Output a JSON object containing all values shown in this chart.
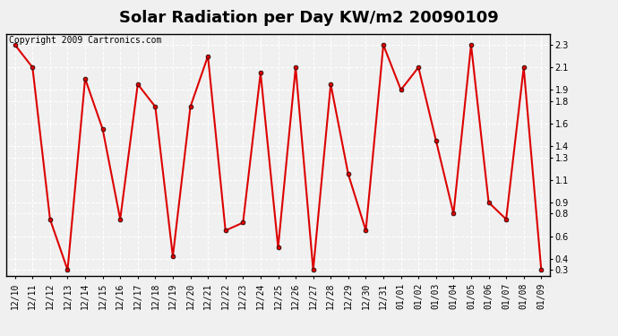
{
  "title": "Solar Radiation per Day KW/m2 20090109",
  "copyright": "Copyright 2009 Cartronics.com",
  "labels": [
    "12/10",
    "12/11",
    "12/12",
    "12/13",
    "12/14",
    "12/15",
    "12/16",
    "12/17",
    "12/18",
    "12/19",
    "12/20",
    "12/21",
    "12/22",
    "12/23",
    "12/24",
    "12/25",
    "12/26",
    "12/27",
    "12/28",
    "12/29",
    "12/30",
    "12/31",
    "01/01",
    "01/02",
    "01/03",
    "01/04",
    "01/05",
    "01/06",
    "01/07",
    "01/08",
    "01/09"
  ],
  "values": [
    2.3,
    2.1,
    0.75,
    0.3,
    2.0,
    1.55,
    0.75,
    1.95,
    1.75,
    0.42,
    1.75,
    2.2,
    0.65,
    0.72,
    2.05,
    0.5,
    2.1,
    0.3,
    1.95,
    1.15,
    0.65,
    2.3,
    1.9,
    2.1,
    1.45,
    0.8,
    2.3,
    0.9,
    0.75,
    2.1,
    0.3
  ],
  "line_color": "#dd0000",
  "marker": "o",
  "marker_size": 3.5,
  "line_width": 1.5,
  "ylim": [
    0.25,
    2.4
  ],
  "yticks": [
    0.3,
    0.4,
    0.6,
    0.8,
    0.9,
    1.1,
    1.3,
    1.4,
    1.6,
    1.8,
    1.9,
    2.1,
    2.3
  ],
  "bg_color": "#f0f0f0",
  "plot_bg_color": "#f0f0f0",
  "grid_color": "#ffffff",
  "title_fontsize": 13,
  "tick_fontsize": 7,
  "copyright_fontsize": 7
}
